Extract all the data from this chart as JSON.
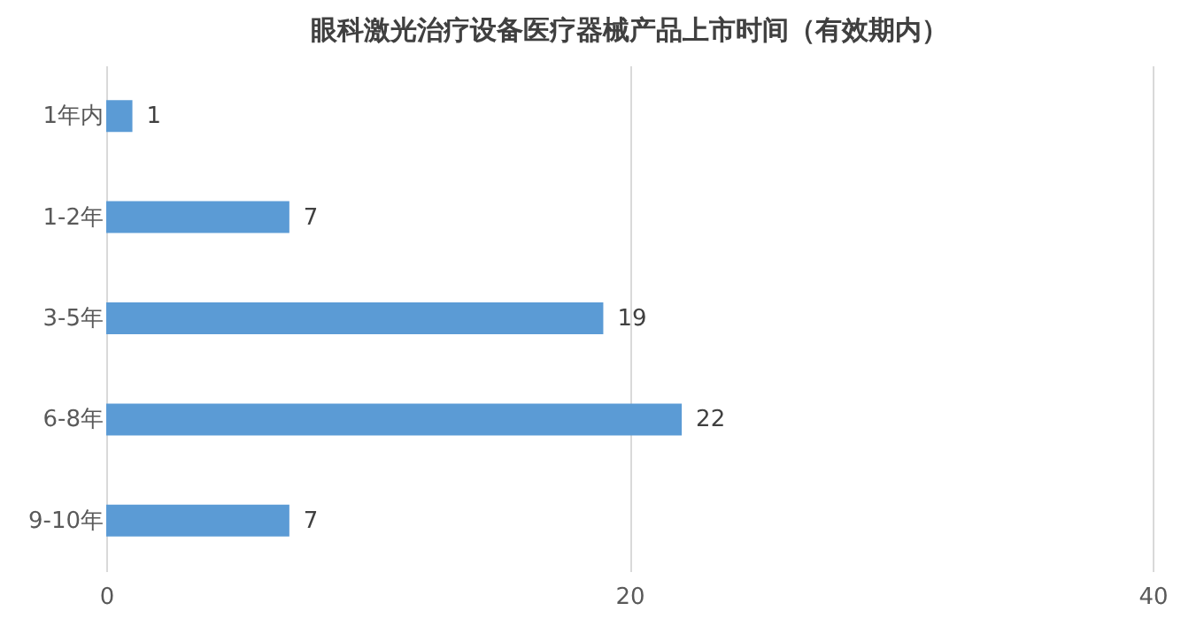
{
  "chart_data": {
    "type": "bar",
    "orientation": "horizontal",
    "title": "眼科激光治疗设备医疗器械产品上市时间（有效期内）",
    "categories": [
      "1年内",
      "1-2年",
      "3-5年",
      "6-8年",
      "9-10年"
    ],
    "values": [
      1,
      7,
      19,
      22,
      7
    ],
    "color": "#5b9bd5",
    "xlim": [
      0,
      40
    ],
    "xticks": [
      0,
      20,
      40
    ],
    "grid": "x",
    "data_labels": true
  }
}
